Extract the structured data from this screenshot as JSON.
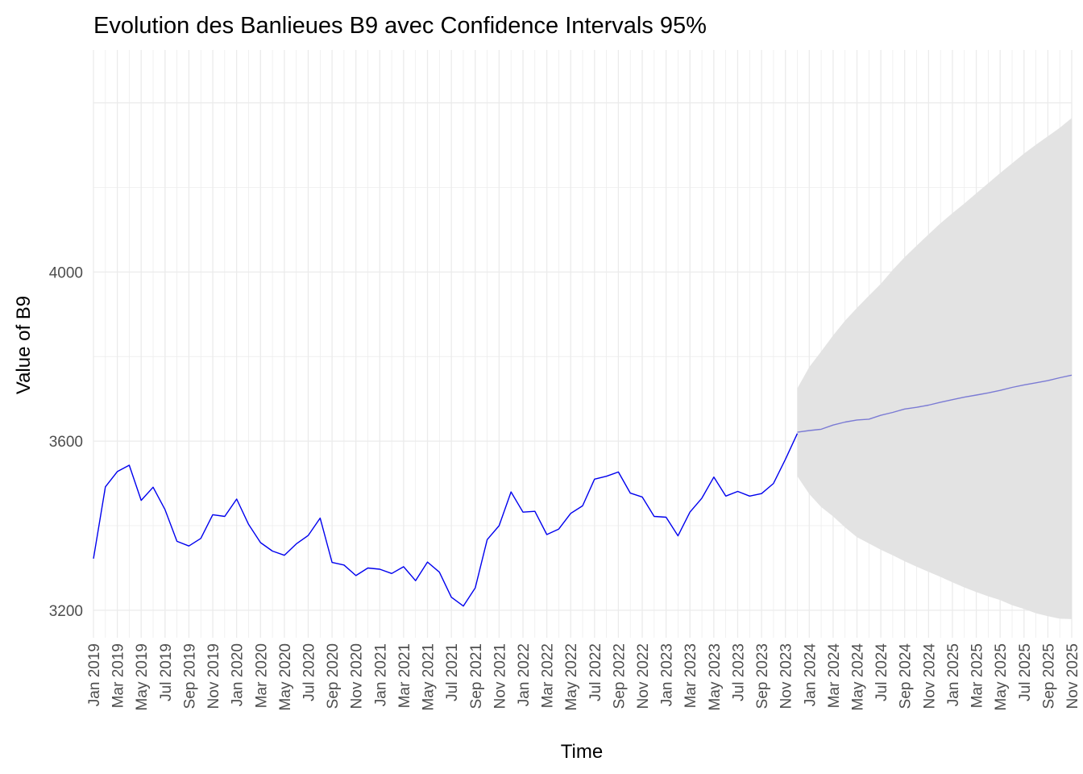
{
  "chart_data": {
    "type": "line",
    "title": "Evolution des Banlieues B9 avec Confidence Intervals 95%",
    "xlabel": "Time",
    "ylabel": "Value of B9",
    "x_start": "2019-01",
    "ylim": [
      3135,
      4525
    ],
    "y_ticks": [
      3200,
      3600,
      4000
    ],
    "grid": true,
    "x_tick_labels": [
      "Jan 2019",
      "Mar 2019",
      "May 2019",
      "Jul 2019",
      "Sep 2019",
      "Nov 2019",
      "Jan 2020",
      "Mar 2020",
      "May 2020",
      "Jul 2020",
      "Sep 2020",
      "Nov 2020",
      "Jan 2021",
      "Mar 2021",
      "May 2021",
      "Jul 2021",
      "Sep 2021",
      "Nov 2021",
      "Jan 2022",
      "Mar 2022",
      "May 2022",
      "Jul 2022",
      "Sep 2022",
      "Nov 2022",
      "Jan 2023",
      "Mar 2023",
      "May 2023",
      "Jul 2023",
      "Sep 2023",
      "Nov 2023",
      "Jan 2024",
      "Mar 2024",
      "May 2024",
      "Jul 2024",
      "Sep 2024",
      "Nov 2024",
      "Jan 2025",
      "Mar 2025",
      "May 2025",
      "Jul 2025",
      "Sep 2025",
      "Nov 2025"
    ],
    "series": [
      {
        "color": "#0000ee",
        "start": "2019-01",
        "values": [
          3322,
          3492,
          3528,
          3543,
          3460,
          3491,
          3438,
          3363,
          3352,
          3370,
          3426,
          3422,
          3463,
          3403,
          3360,
          3340,
          3330,
          3357,
          3377,
          3418,
          3313,
          3307,
          3282,
          3300,
          3297,
          3287,
          3303,
          3270,
          3314,
          3290,
          3231,
          3210,
          3253,
          3367,
          3400,
          3480,
          3432,
          3434,
          3379,
          3392,
          3429,
          3447,
          3510,
          3517,
          3527,
          3477,
          3468,
          3422,
          3420,
          3376,
          3432,
          3465,
          3515,
          3470,
          3481,
          3470,
          3476,
          3500,
          3557,
          3618
        ]
      },
      {
        "color": "#7b7bd4",
        "start": "2023-12",
        "values": [
          3621,
          3625,
          3628,
          3638,
          3645,
          3650,
          3652,
          3661,
          3668,
          3676,
          3680,
          3685,
          3692,
          3698,
          3704,
          3709,
          3714,
          3720,
          3727,
          3733,
          3738,
          3743,
          3750,
          3756
        ]
      }
    ],
    "confidence_interval": {
      "level": "95%",
      "color": "#e3e3e3",
      "start": "2023-12",
      "lower": [
        3517,
        3475,
        3444,
        3422,
        3396,
        3373,
        3358,
        3343,
        3330,
        3316,
        3303,
        3291,
        3279,
        3266,
        3254,
        3243,
        3233,
        3224,
        3212,
        3203,
        3193,
        3186,
        3180,
        3179
      ],
      "upper": [
        3725,
        3775,
        3812,
        3850,
        3885,
        3915,
        3944,
        3972,
        4005,
        4035,
        4062,
        4089,
        4115,
        4139,
        4162,
        4186,
        4210,
        4234,
        4257,
        4280,
        4301,
        4321,
        4341,
        4364
      ]
    }
  }
}
